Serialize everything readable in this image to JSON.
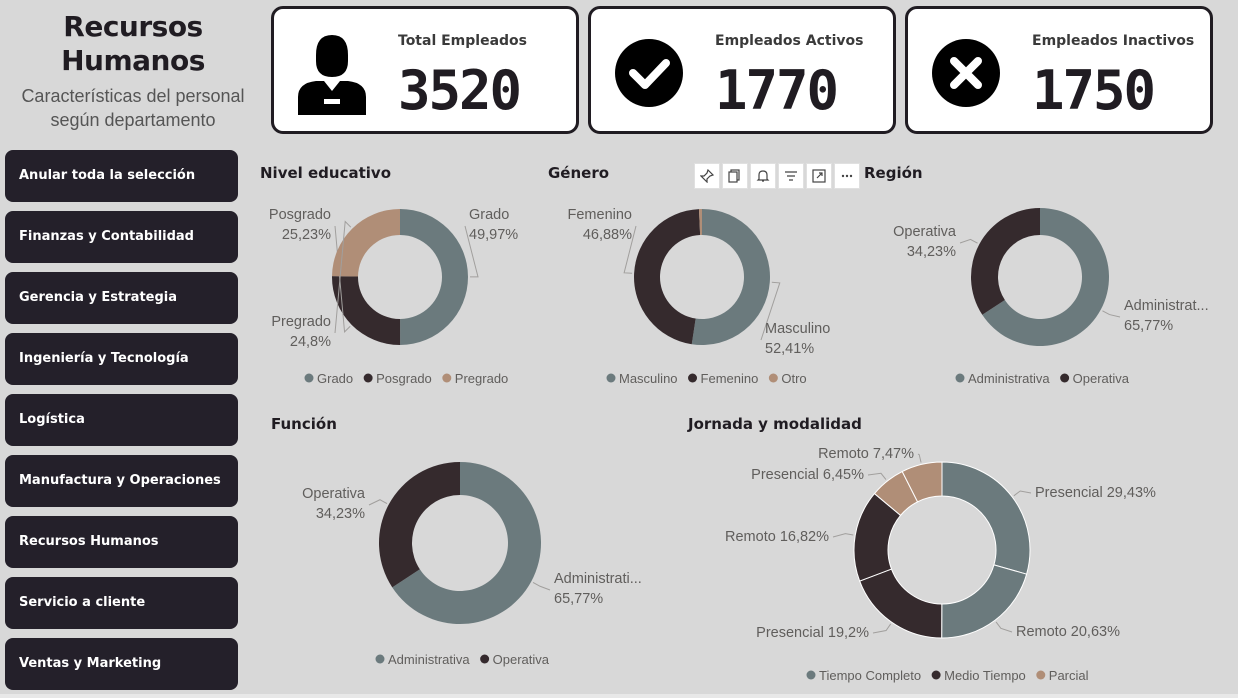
{
  "header": {
    "title": "Recursos\nHumanos",
    "subtitle": "Características del personal\nsegún departamento"
  },
  "kpis": [
    {
      "label": "Total Empleados",
      "value": "3520",
      "icon": "employee-icon"
    },
    {
      "label": "Empleados Activos",
      "value": "1770",
      "icon": "check-circle-icon"
    },
    {
      "label": "Empleados Inactivos",
      "value": "1750",
      "icon": "x-circle-icon"
    }
  ],
  "slicers": [
    "Anular toda la selección",
    "Finanzas y Contabilidad",
    "Gerencia y Estrategia",
    "Ingeniería y Tecnología",
    "Logística",
    "Manufactura y Operaciones",
    "Recursos Humanos",
    "Servicio a cliente",
    "Ventas y Marketing"
  ],
  "toolbar": [
    "pin-icon",
    "copy-icon",
    "bell-icon",
    "filter-icon",
    "focus-mode-icon",
    "more-options-icon"
  ],
  "colors": {
    "grey": "#6b7a7d",
    "dark": "#352a2d",
    "tan": "#b08e77",
    "panel_dark": "#24202a"
  },
  "chart_data": [
    {
      "id": "nivel",
      "type": "pie",
      "title": "Nivel educativo",
      "slices": [
        {
          "label": "Grado",
          "value": 49.97,
          "text": "49,97%",
          "color": "#6b7a7d"
        },
        {
          "label": "Posgrado",
          "value": 25.23,
          "text": "25,23%",
          "color": "#352a2d"
        },
        {
          "label": "Pregrado",
          "value": 24.8,
          "text": "24,8%",
          "color": "#b08e77"
        }
      ],
      "legend": [
        "Grado",
        "Posgrado",
        "Pregrado"
      ]
    },
    {
      "id": "genero",
      "type": "pie",
      "title": "Género",
      "slices": [
        {
          "label": "Masculino",
          "value": 52.41,
          "text": "52,41%",
          "color": "#6b7a7d"
        },
        {
          "label": "Femenino",
          "value": 46.88,
          "text": "46,88%",
          "color": "#352a2d"
        },
        {
          "label": "Otro",
          "value": 0.71,
          "text": "",
          "color": "#b08e77"
        }
      ],
      "legend": [
        "Masculino",
        "Femenino",
        "Otro"
      ]
    },
    {
      "id": "region",
      "type": "pie",
      "title": "Región",
      "slices": [
        {
          "label": "Administrat...",
          "value": 65.77,
          "text": "65,77%",
          "color": "#6b7a7d"
        },
        {
          "label": "Operativa",
          "value": 34.23,
          "text": "34,23%",
          "color": "#352a2d"
        }
      ],
      "legend": [
        "Administrativa",
        "Operativa"
      ]
    },
    {
      "id": "funcion",
      "type": "pie",
      "title": "Función",
      "slices": [
        {
          "label": "Administrati...",
          "value": 65.77,
          "text": "65,77%",
          "color": "#6b7a7d"
        },
        {
          "label": "Operativa",
          "value": 34.23,
          "text": "34,23%",
          "color": "#352a2d"
        }
      ],
      "legend": [
        "Administrativa",
        "Operativa"
      ]
    },
    {
      "id": "jornada",
      "type": "pie",
      "title": "Jornada y modalidad",
      "slices": [
        {
          "label": "Presencial 29,43%",
          "value": 29.43,
          "color": "#6b7a7d"
        },
        {
          "label": "Remoto 20,63%",
          "value": 20.63,
          "color": "#6b7a7d"
        },
        {
          "label": "Presencial 19,2%",
          "value": 19.2,
          "color": "#352a2d"
        },
        {
          "label": "Remoto 16,82%",
          "value": 16.82,
          "color": "#352a2d"
        },
        {
          "label": "Presencial 6,45%",
          "value": 6.45,
          "color": "#b08e77"
        },
        {
          "label": "Remoto 7,47%",
          "value": 7.47,
          "color": "#b08e77"
        }
      ],
      "legend": [
        "Tiempo Completo",
        "Medio Tiempo",
        "Parcial"
      ],
      "legend_colors": [
        "#6b7a7d",
        "#352a2d",
        "#b08e77"
      ]
    }
  ]
}
